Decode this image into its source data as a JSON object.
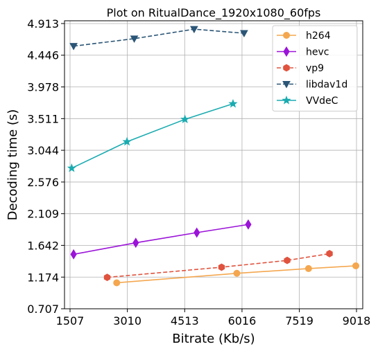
{
  "chart_data": {
    "type": "line",
    "title": "Plot on RitualDance_1920x1080_60fps",
    "xlabel": "Bitrate (Kb/s)",
    "ylabel": "Decoding time (s)",
    "xlim": [
      1507,
      9018
    ],
    "ylim": [
      0.707,
      4.913
    ],
    "xticks": [
      "1507",
      "3010",
      "4513",
      "6016",
      "7519",
      "9018"
    ],
    "yticks": [
      "0.707",
      "1.174",
      "1.642",
      "2.109",
      "2.576",
      "3.044",
      "3.511",
      "3.978",
      "4.446",
      "4.913"
    ],
    "grid": true,
    "legend_position": "top-right",
    "series": [
      {
        "name": "h264",
        "color": "#f4a74f",
        "linestyle": "solid",
        "marker": "circle",
        "x": [
          2730,
          5880,
          7760,
          9000
        ],
        "y": [
          1.09,
          1.23,
          1.3,
          1.34
        ]
      },
      {
        "name": "hevc",
        "color": "#9b13d8",
        "linestyle": "solid",
        "marker": "diamond",
        "x": [
          1600,
          3230,
          4830,
          6180
        ],
        "y": [
          1.51,
          1.68,
          1.83,
          1.95
        ]
      },
      {
        "name": "vp9",
        "color": "#e0533e",
        "linestyle": "dashed",
        "marker": "hexagon",
        "x": [
          2480,
          5480,
          7200,
          8310
        ],
        "y": [
          1.17,
          1.32,
          1.42,
          1.52
        ]
      },
      {
        "name": "libdav1d",
        "color": "#2a5576",
        "linestyle": "dashed",
        "marker": "triangle-down",
        "x": [
          1600,
          3190,
          4760,
          6070
        ],
        "y": [
          4.58,
          4.69,
          4.83,
          4.77
        ]
      },
      {
        "name": "VVdeC",
        "color": "#1aabb0",
        "linestyle": "solid",
        "marker": "star",
        "x": [
          1550,
          3000,
          4520,
          5780
        ],
        "y": [
          2.78,
          3.17,
          3.5,
          3.73
        ]
      }
    ]
  }
}
